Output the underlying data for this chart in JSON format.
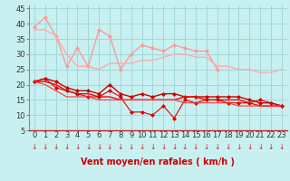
{
  "title": "",
  "xlabel": "Vent moyen/en rafales ( km/h )",
  "ylabel": "",
  "background_color": "#c8f0f0",
  "grid_color": "#a0d8d8",
  "xlim": [
    -0.5,
    23.5
  ],
  "ylim": [
    5,
    46
  ],
  "yticks": [
    5,
    10,
    15,
    20,
    25,
    30,
    35,
    40,
    45
  ],
  "xticks": [
    0,
    1,
    2,
    3,
    4,
    5,
    6,
    7,
    8,
    9,
    10,
    11,
    12,
    13,
    14,
    15,
    16,
    17,
    18,
    19,
    20,
    21,
    22,
    23
  ],
  "series": [
    {
      "data": [
        39,
        42,
        36,
        26,
        32,
        26,
        38,
        36,
        25,
        30,
        33,
        32,
        31,
        33,
        32,
        31,
        31,
        25
      ],
      "color": "#ff9999",
      "marker": "D",
      "markersize": 2,
      "linewidth": 1.0,
      "x_start": 0
    },
    {
      "data": [
        38,
        38,
        36,
        30,
        26,
        26,
        25,
        27,
        27,
        27,
        28,
        28,
        29,
        30,
        30,
        29,
        29,
        26,
        26,
        25,
        25,
        24,
        24,
        25
      ],
      "color": "#ffaaaa",
      "marker": null,
      "markersize": 0,
      "linewidth": 1.0,
      "x_start": 0
    },
    {
      "data": [
        21,
        22,
        21,
        19,
        18,
        18,
        17,
        20,
        17,
        16,
        17,
        16,
        17,
        17,
        16,
        16,
        16,
        16,
        16,
        16,
        15,
        14,
        14,
        13
      ],
      "color": "#cc0000",
      "marker": "D",
      "markersize": 2,
      "linewidth": 1.0,
      "x_start": 0
    },
    {
      "data": [
        21,
        21,
        20,
        18,
        17,
        17,
        16,
        16,
        15,
        15,
        15,
        15,
        15,
        15,
        16,
        16,
        15,
        15,
        15,
        15,
        14,
        13,
        13,
        13
      ],
      "color": "#ff0000",
      "marker": null,
      "markersize": 0,
      "linewidth": 1.0,
      "x_start": 0
    },
    {
      "data": [
        21,
        22,
        19,
        18,
        17,
        16,
        16,
        18,
        16,
        11,
        11,
        10,
        13,
        9,
        15,
        14,
        15,
        15,
        14,
        14,
        14,
        15,
        14,
        13
      ],
      "color": "#dd0000",
      "marker": "D",
      "markersize": 2,
      "linewidth": 0.8,
      "x_start": 0
    },
    {
      "data": [
        21,
        20,
        18,
        16,
        16,
        16,
        15,
        15,
        15,
        15,
        15,
        15,
        15,
        15,
        14,
        14,
        14,
        14,
        14,
        13,
        13,
        13,
        13,
        13
      ],
      "color": "#ff3333",
      "marker": null,
      "markersize": 0,
      "linewidth": 0.8,
      "x_start": 0
    }
  ],
  "arrow_color": "#cc2222",
  "xlabel_color": "#cc0000",
  "xlabel_fontsize": 7,
  "tick_fontsize": 6
}
